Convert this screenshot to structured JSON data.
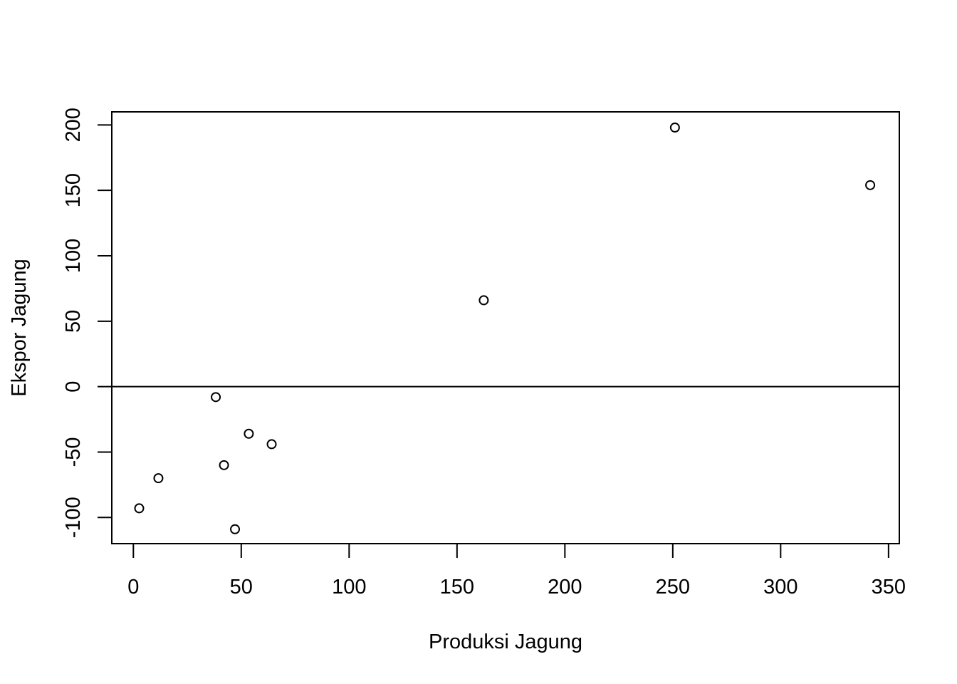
{
  "chart_data": {
    "type": "scatter",
    "title": "",
    "xlabel": "Produksi Jagung",
    "ylabel": "Ekspor Jagung",
    "xlim": [
      -10,
      355
    ],
    "ylim": [
      -120,
      210
    ],
    "x_ticks": [
      0,
      50,
      100,
      150,
      200,
      250,
      300,
      350
    ],
    "y_ticks": [
      -100,
      -50,
      0,
      50,
      100,
      150,
      200
    ],
    "x_tick_labels": [
      "0",
      "50",
      "100",
      "150",
      "200",
      "250",
      "300",
      "350"
    ],
    "y_tick_labels": [
      "-100",
      "-50",
      "0",
      "50",
      "100",
      "150",
      "200"
    ],
    "reference_line": {
      "orientation": "horizontal",
      "y": 0
    },
    "grid": false,
    "legend": "none",
    "marker": "open-circle",
    "points": [
      {
        "x": 2.7,
        "y": -93
      },
      {
        "x": 11.6,
        "y": -70
      },
      {
        "x": 38.2,
        "y": -8
      },
      {
        "x": 42,
        "y": -60
      },
      {
        "x": 47.1,
        "y": -109
      },
      {
        "x": 53.5,
        "y": -36
      },
      {
        "x": 64.1,
        "y": -44
      },
      {
        "x": 162.4,
        "y": 66
      },
      {
        "x": 251,
        "y": 198
      },
      {
        "x": 341.5,
        "y": 154
      }
    ]
  }
}
